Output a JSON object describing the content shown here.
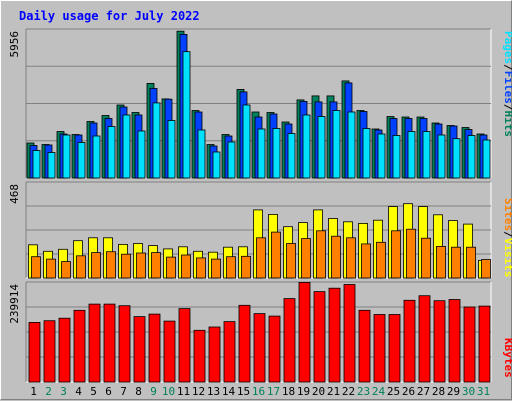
{
  "title": "Daily usage for July 2022",
  "colors": {
    "hits": "#00805c",
    "files": "#0040ff",
    "pages": "#00e0ff",
    "visits": "#ffff00",
    "sites": "#ff8000",
    "kbytes": "#ff0000",
    "title": "#0000ff",
    "weekday": "#000000",
    "weekend": "#00805c"
  },
  "chart_data": [
    {
      "type": "bar",
      "panel": "top",
      "ymax_label": "5956",
      "ylim": [
        0,
        5956
      ],
      "categories": [
        "1",
        "2",
        "3",
        "4",
        "5",
        "6",
        "7",
        "8",
        "9",
        "10",
        "11",
        "12",
        "13",
        "14",
        "15",
        "16",
        "17",
        "18",
        "19",
        "20",
        "21",
        "22",
        "23",
        "24",
        "25",
        "26",
        "27",
        "28",
        "29",
        "30",
        "31"
      ],
      "weekend_days": [
        "2",
        "3",
        "9",
        "10",
        "16",
        "17",
        "23",
        "24",
        "30",
        "31"
      ],
      "legend": [
        "Pages",
        "/",
        "Files",
        "/",
        "Hits"
      ],
      "series": [
        {
          "name": "Hits",
          "values": [
            1400,
            1340,
            1860,
            1740,
            2260,
            2500,
            2920,
            2620,
            3780,
            3160,
            5870,
            2700,
            1340,
            1740,
            3540,
            2640,
            2620,
            2240,
            3120,
            3280,
            3280,
            3880,
            2700,
            1960,
            2460,
            2440,
            2440,
            2200,
            2100,
            2020,
            1760
          ]
        },
        {
          "name": "Files",
          "values": [
            1300,
            1320,
            1760,
            1720,
            2200,
            2380,
            2840,
            2520,
            3580,
            3150,
            5740,
            2640,
            1280,
            1680,
            3440,
            2440,
            2560,
            2160,
            3060,
            3040,
            3040,
            3800,
            2660,
            1920,
            2380,
            2380,
            2380,
            2160,
            2080,
            1940,
            1720
          ]
        },
        {
          "name": "Pages",
          "values": [
            1100,
            1020,
            1720,
            1420,
            1680,
            2060,
            2520,
            1880,
            3000,
            2300,
            5050,
            1920,
            1040,
            1440,
            2920,
            1960,
            1980,
            1780,
            2520,
            2460,
            2700,
            2640,
            1980,
            1760,
            1700,
            1860,
            1860,
            1720,
            1570,
            1700,
            1520
          ]
        }
      ]
    },
    {
      "type": "bar",
      "panel": "middle",
      "ymax_label": "468",
      "ylim": [
        0,
        468
      ],
      "legend": [
        "Sites",
        "/",
        "Visits"
      ],
      "series": [
        {
          "name": "Visits",
          "values": [
            162,
            130,
            140,
            182,
            196,
            196,
            164,
            168,
            158,
            142,
            152,
            130,
            126,
            150,
            152,
            332,
            310,
            250,
            270,
            332,
            290,
            274,
            266,
            282,
            348,
            362,
            348,
            308,
            280,
            263,
            86
          ]
        },
        {
          "name": "Sites",
          "values": [
            104,
            92,
            80,
            108,
            124,
            128,
            116,
            122,
            124,
            102,
            112,
            98,
            92,
            104,
            106,
            196,
            224,
            168,
            192,
            230,
            204,
            196,
            166,
            174,
            230,
            238,
            194,
            154,
            150,
            150,
            90
          ]
        }
      ]
    },
    {
      "type": "bar",
      "panel": "bottom",
      "ymax_label": "239914",
      "ylim": [
        0,
        239914
      ],
      "legend": [
        "KBytes"
      ],
      "series": [
        {
          "name": "KBytes",
          "values": [
            143000,
            147000,
            153000,
            172000,
            187000,
            187000,
            183000,
            157000,
            163000,
            146000,
            176000,
            124000,
            132000,
            145000,
            184000,
            164000,
            158000,
            200000,
            239000,
            217000,
            225000,
            234000,
            172000,
            162000,
            162000,
            196000,
            207000,
            195000,
            198000,
            180000,
            182000
          ]
        }
      ]
    }
  ]
}
